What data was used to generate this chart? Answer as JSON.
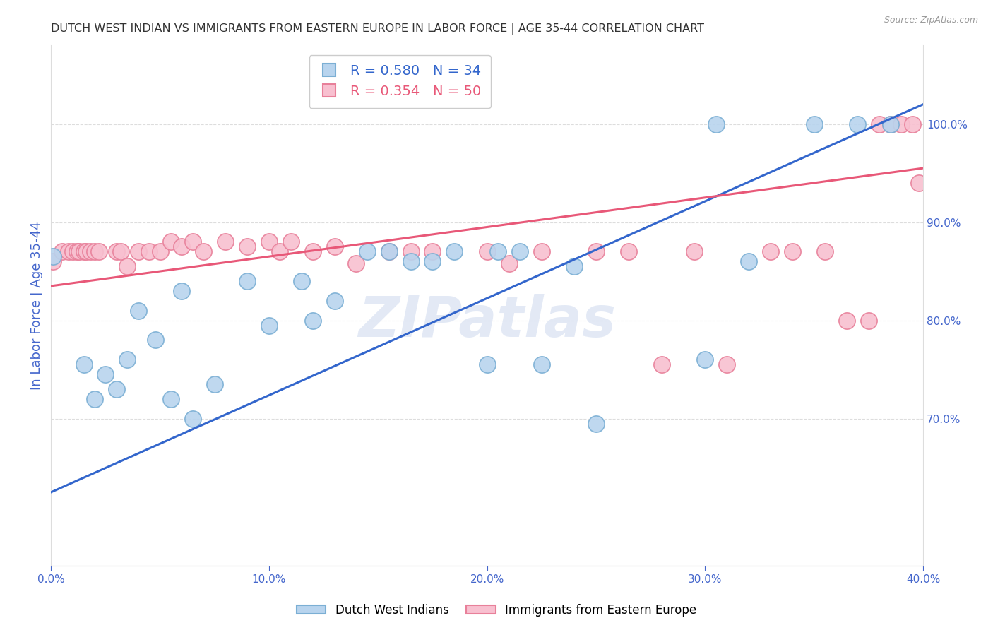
{
  "title": "DUTCH WEST INDIAN VS IMMIGRANTS FROM EASTERN EUROPE IN LABOR FORCE | AGE 35-44 CORRELATION CHART",
  "source_text": "Source: ZipAtlas.com",
  "ylabel": "In Labor Force | Age 35-44",
  "xlim": [
    0.0,
    0.4
  ],
  "ylim": [
    0.55,
    1.08
  ],
  "blue_fill": "#b8d4ee",
  "blue_edge": "#7bafd4",
  "pink_fill": "#f8c0d0",
  "pink_edge": "#e8809a",
  "blue_line_color": "#3366cc",
  "pink_line_color": "#e85878",
  "R_blue": 0.58,
  "N_blue": 34,
  "R_pink": 0.354,
  "N_pink": 50,
  "watermark": "ZIPatlas",
  "title_color": "#333333",
  "source_color": "#999999",
  "axis_label_color": "#4466cc",
  "tick_color": "#4466cc",
  "grid_color": "#dddddd",
  "legend_edge_color": "#cccccc",
  "blue_x": [
    0.001,
    0.015,
    0.02,
    0.025,
    0.03,
    0.035,
    0.04,
    0.048,
    0.055,
    0.06,
    0.065,
    0.075,
    0.09,
    0.1,
    0.115,
    0.12,
    0.13,
    0.145,
    0.155,
    0.165,
    0.175,
    0.185,
    0.2,
    0.205,
    0.215,
    0.225,
    0.24,
    0.25,
    0.3,
    0.305,
    0.32,
    0.35,
    0.37,
    0.385
  ],
  "blue_y": [
    0.865,
    0.755,
    0.72,
    0.745,
    0.73,
    0.76,
    0.81,
    0.78,
    0.72,
    0.83,
    0.7,
    0.735,
    0.84,
    0.795,
    0.84,
    0.8,
    0.82,
    0.87,
    0.87,
    0.86,
    0.86,
    0.87,
    0.755,
    0.87,
    0.87,
    0.755,
    0.855,
    0.695,
    0.76,
    1.0,
    0.86,
    1.0,
    1.0,
    1.0
  ],
  "pink_x": [
    0.001,
    0.005,
    0.008,
    0.01,
    0.012,
    0.013,
    0.015,
    0.016,
    0.018,
    0.02,
    0.022,
    0.03,
    0.032,
    0.035,
    0.04,
    0.045,
    0.05,
    0.055,
    0.06,
    0.065,
    0.07,
    0.08,
    0.09,
    0.1,
    0.105,
    0.11,
    0.12,
    0.13,
    0.14,
    0.155,
    0.165,
    0.175,
    0.2,
    0.21,
    0.225,
    0.25,
    0.265,
    0.28,
    0.295,
    0.31,
    0.33,
    0.34,
    0.355,
    0.365,
    0.375,
    0.38,
    0.385,
    0.39,
    0.395,
    0.398
  ],
  "pink_y": [
    0.86,
    0.87,
    0.87,
    0.87,
    0.87,
    0.87,
    0.87,
    0.87,
    0.87,
    0.87,
    0.87,
    0.87,
    0.87,
    0.855,
    0.87,
    0.87,
    0.87,
    0.88,
    0.875,
    0.88,
    0.87,
    0.88,
    0.875,
    0.88,
    0.87,
    0.88,
    0.87,
    0.875,
    0.858,
    0.87,
    0.87,
    0.87,
    0.87,
    0.858,
    0.87,
    0.87,
    0.87,
    0.755,
    0.87,
    0.755,
    0.87,
    0.87,
    0.87,
    0.8,
    0.8,
    1.0,
    1.0,
    1.0,
    1.0,
    0.94
  ],
  "x_ticks": [
    0.0,
    0.1,
    0.2,
    0.3,
    0.4
  ],
  "y_ticks_right": [
    1.0,
    0.9,
    0.8,
    0.7
  ],
  "blue_line_x0": 0.0,
  "blue_line_y0": 0.625,
  "blue_line_x1": 0.4,
  "blue_line_y1": 1.02,
  "pink_line_x0": 0.0,
  "pink_line_y0": 0.835,
  "pink_line_x1": 0.4,
  "pink_line_y1": 0.955
}
